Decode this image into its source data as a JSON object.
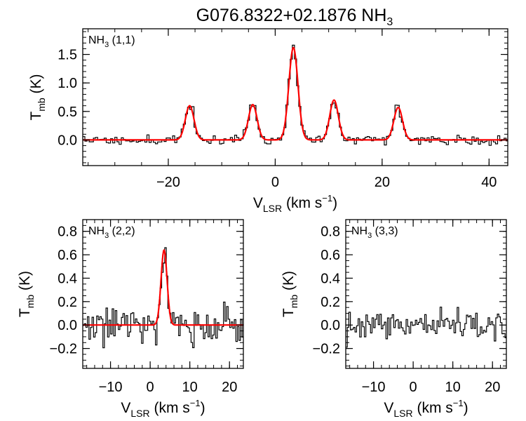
{
  "figure": {
    "title_main": "G076.8322+02.1876 NH",
    "title_sub": "3"
  },
  "chart_data": [
    {
      "type": "line",
      "panel": "NH3 (1,1)",
      "label": {
        "main": "NH",
        "sub": "3",
        "rest": " (1,1)"
      },
      "xlabel": {
        "main": "V",
        "sub": "LSR",
        "rest": " (km s",
        "sup": "−1",
        "close": ")"
      },
      "ylabel": {
        "main": "T",
        "sub": "mb",
        "rest": " (K)"
      },
      "xlim": [
        -36,
        43.5
      ],
      "ylim": [
        -0.45,
        1.95
      ],
      "xticks": [
        -20,
        0,
        20,
        40
      ],
      "xticklabels": [
        "−20",
        "0",
        "20",
        "40"
      ],
      "yticks": [
        0.0,
        0.5,
        1.0,
        1.5
      ],
      "yticklabels": [
        "0.0",
        "0.5",
        "1.0",
        "1.5"
      ],
      "xminor": 5,
      "yminor": 0.1,
      "series": [
        {
          "kind": "observed-histogram",
          "color": "#000000",
          "noise_rms": 0.045
        },
        {
          "kind": "gaussian-fit",
          "color": "#ff0000",
          "components": [
            {
              "center": -16.0,
              "amplitude": 0.6,
              "fwhm": 1.9
            },
            {
              "center": -4.2,
              "amplitude": 0.62,
              "fwhm": 1.9
            },
            {
              "center": 3.4,
              "amplitude": 1.62,
              "fwhm": 2.0
            },
            {
              "center": 11.0,
              "amplitude": 0.7,
              "fwhm": 1.9
            },
            {
              "center": 23.0,
              "amplitude": 0.57,
              "fwhm": 1.9
            }
          ]
        }
      ]
    },
    {
      "type": "line",
      "panel": "NH3 (2,2)",
      "label": {
        "main": "NH",
        "sub": "3",
        "rest": " (2,2)"
      },
      "xlabel": {
        "main": "V",
        "sub": "LSR",
        "rest": " (km s",
        "sup": "−1",
        "close": ")"
      },
      "ylabel": {
        "main": "T",
        "sub": "mb",
        "rest": " (K)"
      },
      "xlim": [
        -17,
        23.5
      ],
      "ylim": [
        -0.37,
        0.9
      ],
      "xticks": [
        -10,
        0,
        10,
        20
      ],
      "xticklabels": [
        "−10",
        "0",
        "10",
        "20"
      ],
      "yticks": [
        -0.2,
        0.0,
        0.2,
        0.4,
        0.6,
        0.8
      ],
      "yticklabels": [
        "−0.2",
        "0.0",
        "0.2",
        "0.4",
        "0.6",
        "0.8"
      ],
      "xminor": 2,
      "yminor": 0.05,
      "series": [
        {
          "kind": "observed-histogram",
          "color": "#000000",
          "noise_rms": 0.075
        },
        {
          "kind": "gaussian-fit",
          "color": "#ff0000",
          "components": [
            {
              "center": 3.5,
              "amplitude": 0.64,
              "fwhm": 1.8
            }
          ]
        }
      ]
    },
    {
      "type": "line",
      "panel": "NH3 (3,3)",
      "label": {
        "main": "NH",
        "sub": "3",
        "rest": " (3,3)"
      },
      "xlabel": {
        "main": "V",
        "sub": "LSR",
        "rest": " (km s",
        "sup": "−1",
        "close": ")"
      },
      "ylabel": {
        "main": "T",
        "sub": "mb",
        "rest": " (K)"
      },
      "xlim": [
        -17,
        23.5
      ],
      "ylim": [
        -0.37,
        0.9
      ],
      "xticks": [
        -10,
        0,
        10,
        20
      ],
      "xticklabels": [
        "−10",
        "0",
        "10",
        "20"
      ],
      "yticks": [
        -0.2,
        0.0,
        0.2,
        0.4,
        0.6,
        0.8
      ],
      "yticklabels": [
        "−0.2",
        "0.0",
        "0.2",
        "0.4",
        "0.6",
        "0.8"
      ],
      "xminor": 2,
      "yminor": 0.05,
      "series": [
        {
          "kind": "observed-histogram",
          "color": "#000000",
          "noise_rms": 0.06
        }
      ]
    }
  ]
}
